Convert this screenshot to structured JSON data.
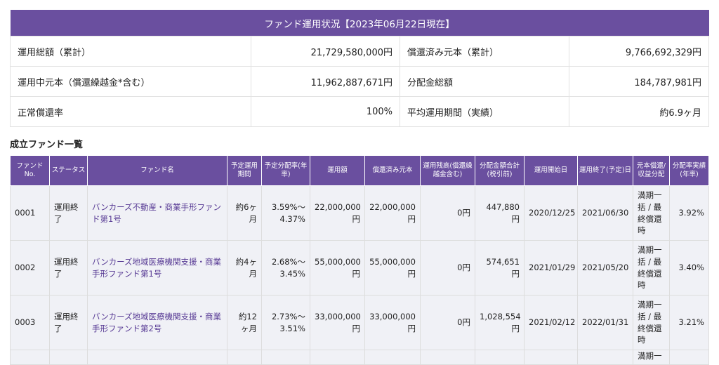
{
  "summary": {
    "title": "ファンド運用状況【2023年06月22日現在】",
    "rows": [
      {
        "l1": "運用総額（累計）",
        "v1": "21,729,580,000円",
        "l2": "償還済み元本（累計）",
        "v2": "9,766,692,329円"
      },
      {
        "l1": "運用中元本（償還繰越金*含む）",
        "v1": "11,962,887,671円",
        "l2": "分配金総額",
        "v2": "184,787,981円"
      },
      {
        "l1": "正常償還率",
        "v1": "100%",
        "l2": "平均運用期間（実績）",
        "v2": "約6.9ヶ月"
      }
    ]
  },
  "funds": {
    "title": "成立ファンド一覧",
    "headers": [
      "ファンドNo.",
      "ステータス",
      "ファンド名",
      "予定運用期間",
      "予定分配率(年率)",
      "運用額",
      "償還済み元本",
      "運用残高(償還繰越金含む)",
      "分配金額合計(税引前)",
      "運用開始日",
      "運用終了(予定)日",
      "元本償還/収益分配",
      "分配率実績(年率)"
    ],
    "rows": [
      [
        "0001",
        "運用終了",
        "バンカーズ不動産・商業手形ファンド第1号",
        "約6ヶ月",
        "3.59%〜4.37%",
        "22,000,000円",
        "22,000,000円",
        "0円",
        "447,880円",
        "2020/12/25",
        "2021/06/30",
        "満期一括 / 最終償還時",
        "3.92%"
      ],
      [
        "0002",
        "運用終了",
        "バンカーズ地域医療機関支援・商業手形ファンド第1号",
        "約4ヶ月",
        "2.68%〜3.45%",
        "55,000,000円",
        "55,000,000円",
        "0円",
        "574,651円",
        "2021/01/29",
        "2021/05/20",
        "満期一括 / 最終償還時",
        "3.40%"
      ],
      [
        "0003",
        "運用終了",
        "バンカーズ地域医療機関支援・商業手形ファンド第2号",
        "約12ヶ月",
        "2.73%〜3.51%",
        "33,000,000円",
        "33,000,000円",
        "0円",
        "1,028,554円",
        "2021/02/12",
        "2022/01/31",
        "満期一括 / 最終償還時",
        "3.21%"
      ]
    ],
    "partial_row_text": "満期一"
  },
  "colors": {
    "header": "#6a4f9f",
    "link": "#573a94",
    "row": "#f0f1f6"
  }
}
